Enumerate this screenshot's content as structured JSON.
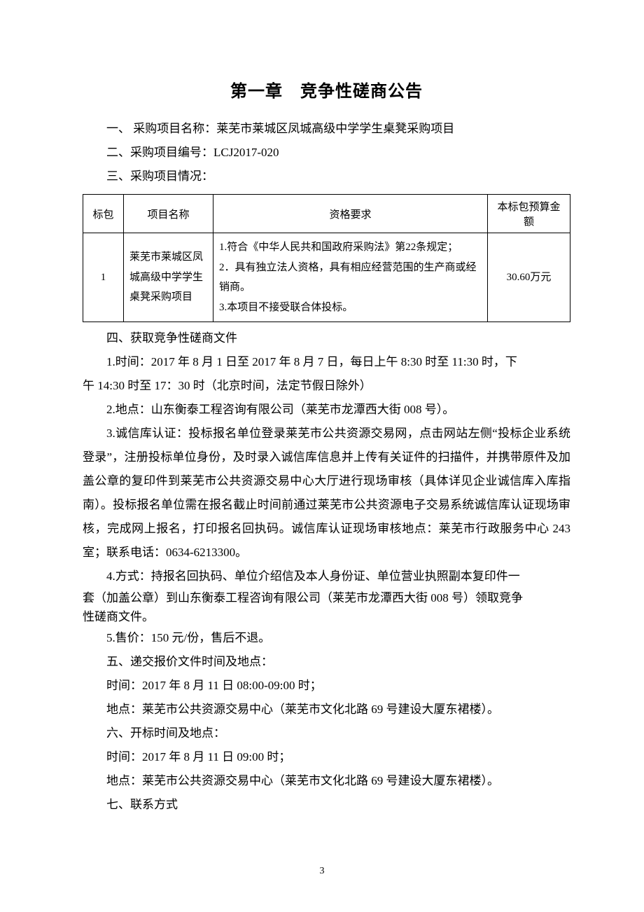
{
  "chapter_title": "第一章　竞争性磋商公告",
  "s1": "一、 采购项目名称：莱芜市莱城区凤城高级中学学生桌凳采购项目",
  "s2": "二、采购项目编号：LCJ2017-020",
  "s3": "三、采购项目情况：",
  "table": {
    "headers": {
      "pkg": "标包",
      "name": "项目名称",
      "req": "资格要求",
      "budget": "本标包预算金额"
    },
    "row": {
      "pkg": "1",
      "name": "莱芜市莱城区凤城高级中学学生桌凳采购项目",
      "req": "1.符合《中华人民共和国政府采购法》第22条规定；\n2．具有独立法人资格，具有相应经营范围的生产商或经销商。\n3.本项目不接受联合体投标。",
      "budget": "30.60万元"
    }
  },
  "s4": "四、获取竞争性磋商文件",
  "s4_1a": "1.时间：2017 年 8 月 1 日至 2017 年 8 月 7 日，每日上午 8:30 时至 11:30 时，下",
  "s4_1b": "午 14:30 时至 17：30 时（北京时间，法定节假日除外）",
  "s4_2": "2.地点：山东衡泰工程咨询有限公司（莱芜市龙潭西大街 008 号）。",
  "s4_3": "3.诚信库认证：投标报名单位登录莱芜市公共资源交易网，点击网站左侧“投标企业系统登录”，注册投标单位身份，及时录入诚信库信息并上传有关证件的扫描件，并携带原件及加盖公章的复印件到莱芜市公共资源交易中心大厅进行现场审核（具体详见企业诚信库入库指南）。投标报名单位需在报名截止时间前通过莱芜市公共资源电子交易系统诚信库认证现场审核，完成网上报名，打印报名回执码。诚信库认证现场审核地点：莱芜市行政服务中心 243 室；联系电话：0634-6213300。",
  "s4_4a": "4.方式：持报名回执码、单位介绍信及本人身份证、单位营业执照副本复印件一",
  "s4_4b": "套（加盖公章）到山东衡泰工程咨询有限公司（莱芜市龙潭西大街 008 号）领取竞争",
  "s4_4c": "性磋商文件。",
  "s4_5": "5.售价：150 元/份，售后不退。",
  "s5": "五、递交报价文件时间及地点：",
  "s5_time": "时间：2017 年 8 月 11 日 08:00-09:00 时；",
  "s5_addr": "地点：莱芜市公共资源交易中心（莱芜市文化北路 69 号建设大厦东裙楼）。",
  "s6": "六、开标时间及地点：",
  "s6_time": "时间：2017 年 8 月 11 日 09:00 时；",
  "s6_addr": "地点：莱芜市公共资源交易中心（莱芜市文化北路 69 号建设大厦东裙楼）。",
  "s7": "七、联系方式",
  "page_number": "3"
}
